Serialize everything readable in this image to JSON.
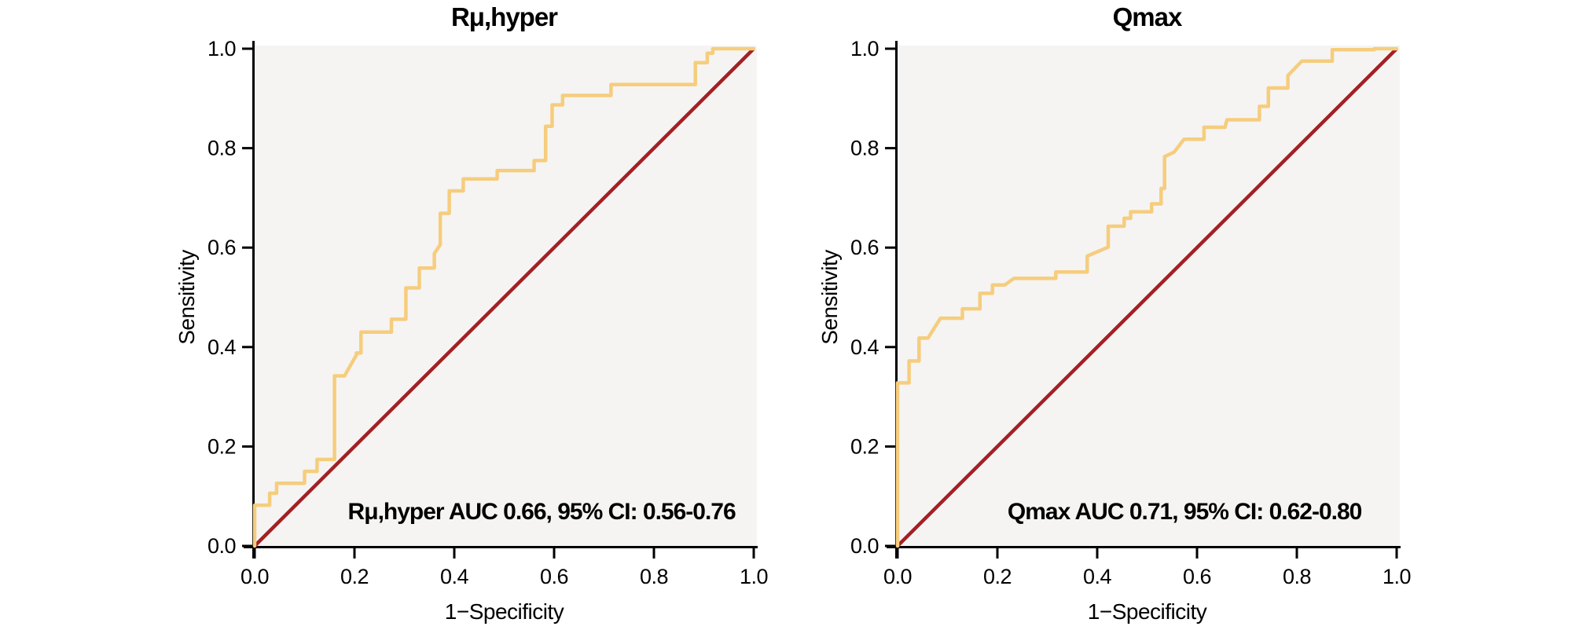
{
  "figure": {
    "background": "#ffffff",
    "plot_background": "#f5f4f3",
    "axis_color": "#000000"
  },
  "chart_data": [
    {
      "type": "line",
      "kind": "roc-curve",
      "title": "Rμ,hyper",
      "xlabel": "1−Specificity",
      "ylabel": "Sensitivity",
      "xlim": [
        0,
        1
      ],
      "ylim": [
        0,
        1
      ],
      "x_ticks": [
        "0.0",
        "0.2",
        "0.4",
        "0.6",
        "0.8",
        "1.0"
      ],
      "y_ticks": [
        "0.0",
        "0.2",
        "0.4",
        "0.6",
        "0.8",
        "1.0"
      ],
      "grid": false,
      "annotation": "Rμ,hyper AUC 0.66, 95% CI: 0.56-0.76",
      "auc": 0.66,
      "ci_level": "95%",
      "ci_lower": 0.56,
      "ci_upper": 0.76,
      "colors": {
        "curve": "#f6cd7d",
        "reference": "#a32024",
        "plot_bg": "#f5f4f3",
        "axis": "#000000"
      },
      "reference_line": [
        [
          0,
          0
        ],
        [
          1,
          1
        ]
      ],
      "series": [
        {
          "name": "ROC curve",
          "points": [
            [
              0,
              0
            ],
            [
              0,
              0.082
            ],
            [
              0.03,
              0.082
            ],
            [
              0.03,
              0.106
            ],
            [
              0.044,
              0.106
            ],
            [
              0.044,
              0.126
            ],
            [
              0.1,
              0.126
            ],
            [
              0.1,
              0.15
            ],
            [
              0.125,
              0.15
            ],
            [
              0.125,
              0.174
            ],
            [
              0.16,
              0.174
            ],
            [
              0.16,
              0.342
            ],
            [
              0.18,
              0.342
            ],
            [
              0.204,
              0.384
            ],
            [
              0.204,
              0.388
            ],
            [
              0.213,
              0.388
            ],
            [
              0.213,
              0.43
            ],
            [
              0.274,
              0.43
            ],
            [
              0.274,
              0.456
            ],
            [
              0.303,
              0.456
            ],
            [
              0.303,
              0.519
            ],
            [
              0.33,
              0.519
            ],
            [
              0.33,
              0.559
            ],
            [
              0.36,
              0.559
            ],
            [
              0.36,
              0.588
            ],
            [
              0.372,
              0.606
            ],
            [
              0.372,
              0.669
            ],
            [
              0.39,
              0.669
            ],
            [
              0.39,
              0.714
            ],
            [
              0.418,
              0.714
            ],
            [
              0.418,
              0.738
            ],
            [
              0.486,
              0.738
            ],
            [
              0.486,
              0.755
            ],
            [
              0.56,
              0.755
            ],
            [
              0.56,
              0.775
            ],
            [
              0.583,
              0.775
            ],
            [
              0.583,
              0.844
            ],
            [
              0.596,
              0.844
            ],
            [
              0.596,
              0.887
            ],
            [
              0.617,
              0.887
            ],
            [
              0.617,
              0.906
            ],
            [
              0.714,
              0.906
            ],
            [
              0.714,
              0.928
            ],
            [
              0.883,
              0.928
            ],
            [
              0.883,
              0.972
            ],
            [
              0.907,
              0.972
            ],
            [
              0.907,
              0.991
            ],
            [
              0.918,
              0.991
            ],
            [
              0.918,
              1.0
            ],
            [
              1.0,
              1.0
            ]
          ]
        }
      ]
    },
    {
      "type": "line",
      "kind": "roc-curve",
      "title": "Qmax",
      "xlabel": "1−Specificity",
      "ylabel": "Sensitivity",
      "xlim": [
        0,
        1
      ],
      "ylim": [
        0,
        1
      ],
      "x_ticks": [
        "0.0",
        "0.2",
        "0.4",
        "0.6",
        "0.8",
        "1.0"
      ],
      "y_ticks": [
        "0.0",
        "0.2",
        "0.4",
        "0.6",
        "0.8",
        "1.0"
      ],
      "grid": false,
      "annotation": "Qmax AUC 0.71, 95% CI: 0.62-0.80",
      "auc": 0.71,
      "ci_level": "95%",
      "ci_lower": 0.62,
      "ci_upper": 0.8,
      "colors": {
        "curve": "#f6cd7d",
        "reference": "#a32024",
        "plot_bg": "#f5f4f3",
        "axis": "#000000"
      },
      "reference_line": [
        [
          0,
          0
        ],
        [
          1,
          1
        ]
      ],
      "series": [
        {
          "name": "ROC curve",
          "points": [
            [
              0,
              0
            ],
            [
              0,
              0.328
            ],
            [
              0.023,
              0.328
            ],
            [
              0.023,
              0.372
            ],
            [
              0.043,
              0.372
            ],
            [
              0.043,
              0.418
            ],
            [
              0.061,
              0.418
            ],
            [
              0.086,
              0.458
            ],
            [
              0.13,
              0.458
            ],
            [
              0.13,
              0.477
            ],
            [
              0.165,
              0.477
            ],
            [
              0.165,
              0.508
            ],
            [
              0.19,
              0.508
            ],
            [
              0.19,
              0.525
            ],
            [
              0.215,
              0.525
            ],
            [
              0.233,
              0.538
            ],
            [
              0.317,
              0.538
            ],
            [
              0.317,
              0.551
            ],
            [
              0.38,
              0.551
            ],
            [
              0.38,
              0.583
            ],
            [
              0.422,
              0.601
            ],
            [
              0.422,
              0.643
            ],
            [
              0.454,
              0.643
            ],
            [
              0.454,
              0.659
            ],
            [
              0.467,
              0.659
            ],
            [
              0.467,
              0.672
            ],
            [
              0.509,
              0.672
            ],
            [
              0.509,
              0.688
            ],
            [
              0.528,
              0.688
            ],
            [
              0.528,
              0.719
            ],
            [
              0.535,
              0.719
            ],
            [
              0.535,
              0.783
            ],
            [
              0.554,
              0.792
            ],
            [
              0.574,
              0.818
            ],
            [
              0.614,
              0.818
            ],
            [
              0.614,
              0.842
            ],
            [
              0.656,
              0.842
            ],
            [
              0.66,
              0.857
            ],
            [
              0.725,
              0.857
            ],
            [
              0.725,
              0.884
            ],
            [
              0.743,
              0.884
            ],
            [
              0.743,
              0.921
            ],
            [
              0.782,
              0.921
            ],
            [
              0.782,
              0.946
            ],
            [
              0.81,
              0.975
            ],
            [
              0.871,
              0.975
            ],
            [
              0.871,
              0.998
            ],
            [
              0.955,
              0.998
            ],
            [
              0.955,
              1.0
            ],
            [
              1.0,
              1.0
            ]
          ]
        }
      ]
    }
  ]
}
